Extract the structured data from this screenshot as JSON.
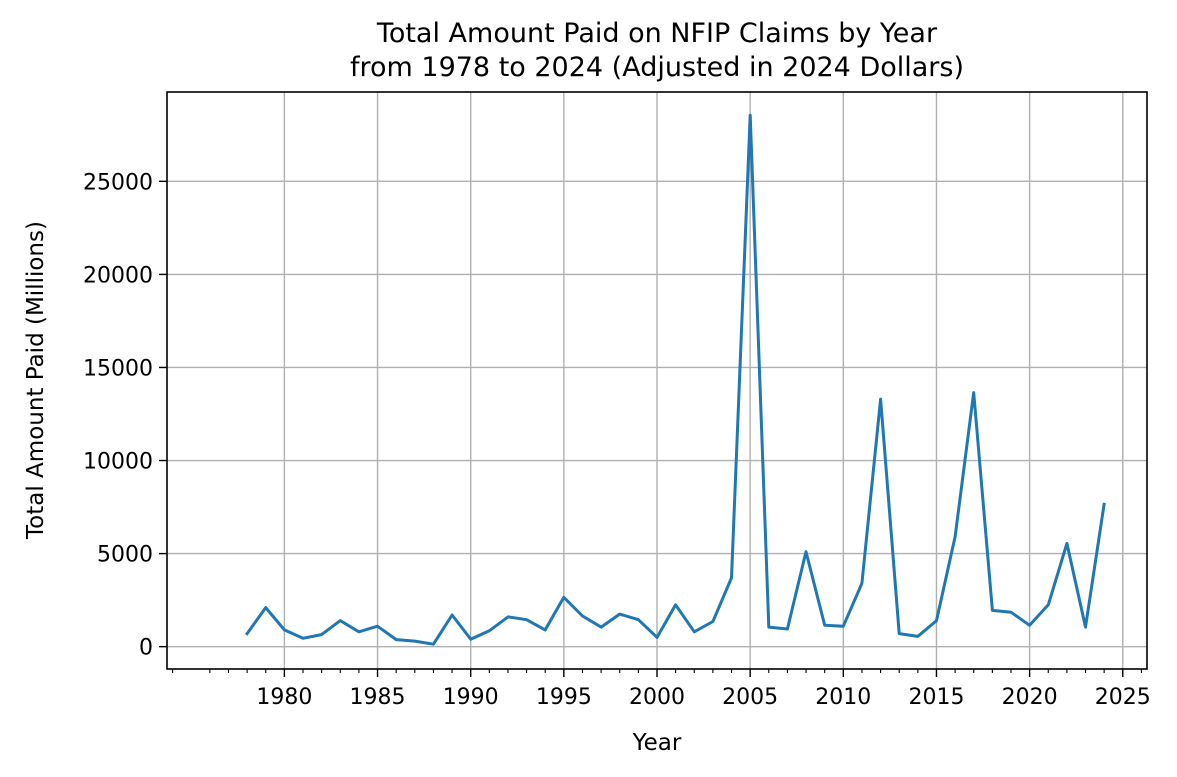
{
  "chart_data": {
    "type": "line",
    "title": "Total Amount Paid on NFIP Claims by Year",
    "subtitle": "from 1978 to 2024 (Adjusted in 2024 Dollars)",
    "xlabel": "Year",
    "ylabel": "Total Amount Paid (Millions)",
    "xlim": [
      1973.7,
      2026.3
    ],
    "ylim": [
      -1200,
      29800
    ],
    "x_ticks": [
      1980,
      1985,
      1990,
      1995,
      2000,
      2005,
      2010,
      2015,
      2020,
      2025
    ],
    "y_ticks": [
      0,
      5000,
      10000,
      15000,
      20000,
      25000
    ],
    "grid": true,
    "line_color": "#1f77b4",
    "series": [
      {
        "x": [
          1978,
          1979,
          1980,
          1981,
          1982,
          1983,
          1984,
          1985,
          1986,
          1987,
          1988,
          1989,
          1990,
          1991,
          1992,
          1993,
          1994,
          1995,
          1996,
          1997,
          1998,
          1999,
          2000,
          2001,
          2002,
          2003,
          2004,
          2005,
          2006,
          2007,
          2008,
          2009,
          2010,
          2011,
          2012,
          2013,
          2014,
          2015,
          2016,
          2017,
          2018,
          2019,
          2020,
          2021,
          2022,
          2023,
          2024
        ],
        "values": [
          700,
          2100,
          900,
          450,
          650,
          1400,
          800,
          1100,
          380,
          300,
          130,
          1700,
          400,
          850,
          1600,
          1450,
          900,
          2650,
          1650,
          1050,
          1750,
          1450,
          500,
          2250,
          800,
          1350,
          3700,
          28550,
          1050,
          950,
          5100,
          1150,
          1100,
          3400,
          13300,
          700,
          550,
          1400,
          5900,
          13650,
          1950,
          1850,
          1150,
          2250,
          5550,
          1050,
          7650
        ]
      }
    ]
  }
}
